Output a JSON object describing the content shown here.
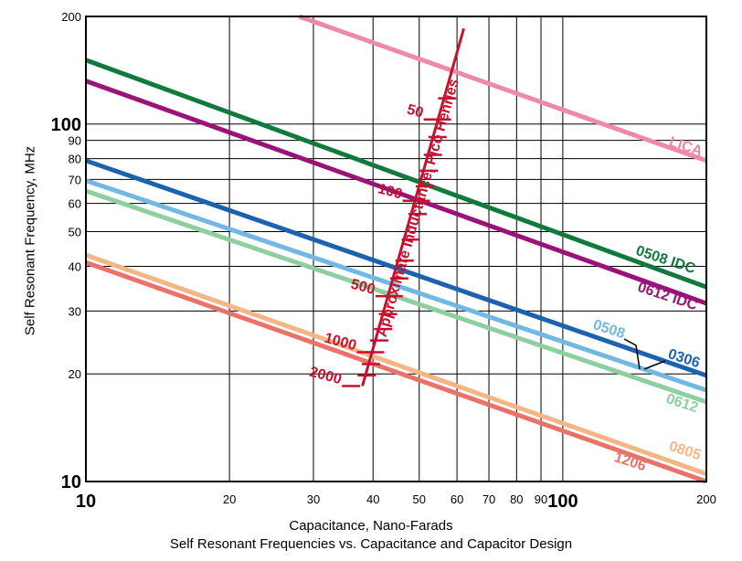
{
  "chart_data": {
    "type": "line",
    "title": "",
    "caption": "Self Resonant Frequencies vs. Capacitance and Capacitor Design",
    "xlabel": "Capacitance, Nano-Farads",
    "ylabel": "Self Resonant Frequency, MHz",
    "xscale": "log",
    "yscale": "log",
    "xlim": [
      10,
      200
    ],
    "ylim": [
      10,
      200
    ],
    "grid": true,
    "x_ticks": [
      {
        "value": 10,
        "label": "10",
        "major": true
      },
      {
        "value": 20,
        "label": "20"
      },
      {
        "value": 30,
        "label": "30"
      },
      {
        "value": 40,
        "label": "40"
      },
      {
        "value": 50,
        "label": "50"
      },
      {
        "value": 60,
        "label": "60"
      },
      {
        "value": 70,
        "label": "70"
      },
      {
        "value": 80,
        "label": "80"
      },
      {
        "value": 90,
        "label": "90"
      },
      {
        "value": 100,
        "label": "100",
        "major": true
      },
      {
        "value": 200,
        "label": "200"
      }
    ],
    "y_ticks": [
      {
        "value": 10,
        "label": "10",
        "major": true
      },
      {
        "value": 20,
        "label": "20"
      },
      {
        "value": 30,
        "label": "30"
      },
      {
        "value": 40,
        "label": "40"
      },
      {
        "value": 50,
        "label": "50"
      },
      {
        "value": 60,
        "label": "60"
      },
      {
        "value": 70,
        "label": "70"
      },
      {
        "value": 80,
        "label": "80"
      },
      {
        "value": 90,
        "label": "90"
      },
      {
        "value": 100,
        "label": "100",
        "major": true
      },
      {
        "value": 200,
        "label": "200"
      }
    ],
    "series": [
      {
        "name": "LICA",
        "color": "#ee8aa6",
        "points": [
          [
            28,
            200
          ],
          [
            200,
            79
          ]
        ]
      },
      {
        "name": "0508 IDC",
        "color": "#0f7a3c",
        "points": [
          [
            10,
            151
          ],
          [
            200,
            35
          ]
        ]
      },
      {
        "name": "0612 IDC",
        "color": "#9a1378",
        "points": [
          [
            10,
            132
          ],
          [
            200,
            31.5
          ]
        ]
      },
      {
        "name": "0306",
        "color": "#1d62b0",
        "points": [
          [
            10,
            79
          ],
          [
            200,
            19.8
          ]
        ]
      },
      {
        "name": "0508",
        "color": "#71b8e4",
        "points": [
          [
            10,
            69.5
          ],
          [
            200,
            18
          ]
        ]
      },
      {
        "name": "0612",
        "color": "#8ecfa0",
        "points": [
          [
            10,
            65
          ],
          [
            200,
            16.7
          ]
        ]
      },
      {
        "name": "0805",
        "color": "#f5b585",
        "points": [
          [
            10,
            43
          ],
          [
            200,
            10.5
          ]
        ]
      },
      {
        "name": "1206",
        "color": "#ea7268",
        "points": [
          [
            10,
            41
          ],
          [
            200,
            10
          ]
        ]
      }
    ],
    "inductance_scale": {
      "title": "Approximate Inductance, Pico Henries",
      "color": "#c8102e",
      "start": [
        38,
        18.5
      ],
      "end": [
        62,
        185
      ],
      "ticks": [
        {
          "x": 38.8,
          "y": 19.8
        },
        {
          "x": 39.6,
          "y": 21.3
        },
        {
          "x": 40.4,
          "y": 23.0
        },
        {
          "x": 41.2,
          "y": 24.8
        },
        {
          "x": 42.0,
          "y": 26.7
        },
        {
          "x": 43.0,
          "y": 29.4
        },
        {
          "x": 44.2,
          "y": 33.0
        },
        {
          "x": 45.4,
          "y": 37.0
        },
        {
          "x": 46.6,
          "y": 41.5
        },
        {
          "x": 48.0,
          "y": 47.5
        },
        {
          "x": 49.6,
          "y": 56.0
        },
        {
          "x": 50.4,
          "y": 61.0
        },
        {
          "x": 51.4,
          "y": 67.0
        },
        {
          "x": 52.4,
          "y": 74.0
        },
        {
          "x": 53.4,
          "y": 82.0
        },
        {
          "x": 54.6,
          "y": 92.0
        },
        {
          "x": 55.8,
          "y": 103.0
        },
        {
          "x": 57.2,
          "y": 118.0
        }
      ],
      "labels": [
        {
          "text": "2000",
          "x": 37.6,
          "y": 18.5
        },
        {
          "text": "1000",
          "x": 40.4,
          "y": 23.0
        },
        {
          "text": "500",
          "x": 44.2,
          "y": 33.0
        },
        {
          "text": "100",
          "x": 50.4,
          "y": 61.0
        },
        {
          "text": "50",
          "x": 55.8,
          "y": 103.0
        }
      ]
    }
  }
}
